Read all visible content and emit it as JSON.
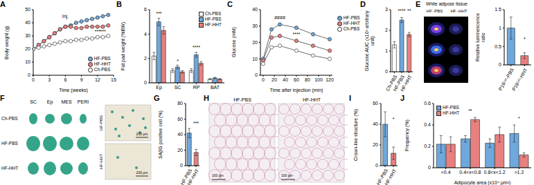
{
  "chart_data": [
    {
      "panel": "A",
      "type": "line",
      "marker": "circle",
      "xlabel": "Time (weeks)",
      "ylabel": "Body weight (g)",
      "x": [
        0,
        1,
        2,
        3,
        4,
        5,
        6,
        7,
        8,
        9,
        10,
        11,
        12,
        13,
        14
      ],
      "xlim": [
        0,
        15
      ],
      "xticks": [
        0,
        3,
        6,
        9,
        12,
        15
      ],
      "ylim": [
        0,
        50
      ],
      "yticks": [
        0,
        10,
        20,
        30,
        40,
        50
      ],
      "legend": "bottom-right",
      "series": [
        {
          "name": "HF-PBS",
          "color": "#6fa8dc",
          "values": [
            20,
            23,
            26,
            29,
            32,
            35,
            37,
            38,
            40,
            41,
            42,
            43,
            44,
            45,
            46
          ]
        },
        {
          "name": "HF-HHT",
          "color": "#e88080",
          "values": [
            20,
            23,
            26,
            29,
            32,
            35,
            37,
            37,
            36,
            36,
            37,
            37,
            37,
            37,
            38
          ]
        },
        {
          "name": "Ch-PBS",
          "color": "#ffffff",
          "values": [
            20,
            21,
            22,
            23,
            24,
            25,
            26,
            26,
            27,
            27,
            28,
            28,
            29,
            29,
            30
          ]
        }
      ],
      "annotations": [
        {
          "text": "Inj.",
          "x": 6,
          "y": 45
        },
        {
          "text": "***",
          "x": 12,
          "y": 33.5
        },
        {
          "text": "***",
          "x": 13,
          "y": 33.5
        }
      ]
    },
    {
      "panel": "B",
      "type": "bar",
      "ylabel": "Fat pad weight (%BW)",
      "categories": [
        "Ep",
        "SC",
        "RP",
        "BAT"
      ],
      "ylim": [
        0,
        6
      ],
      "yticks": [
        0,
        2,
        4,
        6
      ],
      "legend": "top-right",
      "series": [
        {
          "name": "Ch-PBS",
          "color": "#ffffff",
          "values": [
            2.2,
            1.0,
            1.0,
            0.3
          ],
          "errors": [
            0.3,
            0.15,
            0.15,
            0.05
          ]
        },
        {
          "name": "HF-PBS",
          "color": "#6fa8dc",
          "values": [
            5.0,
            1.3,
            2.3,
            0.4
          ],
          "errors": [
            0.3,
            0.15,
            0.2,
            0.05
          ]
        },
        {
          "name": "HF-HHT",
          "color": "#e88080",
          "values": [
            4.3,
            0.9,
            1.6,
            0.3
          ],
          "errors": [
            0.3,
            0.1,
            0.15,
            0.05
          ]
        }
      ],
      "annotations": [
        {
          "text": "***",
          "x": "Ep",
          "y": 5.7
        },
        {
          "text": "*",
          "x": "SC",
          "y": 1.8
        },
        {
          "text": "****",
          "x": "RP",
          "y": 2.9
        }
      ]
    },
    {
      "panel": "C",
      "type": "line",
      "marker": "circle",
      "xlabel": "Time after injection (min)",
      "ylabel": "Glucose (mM)",
      "x": [
        0,
        15,
        30,
        60,
        90,
        120
      ],
      "xlim": [
        -5,
        125
      ],
      "xticks": [
        0,
        20,
        40,
        60,
        80,
        100,
        120
      ],
      "ylim": [
        0,
        40
      ],
      "yticks": [
        0,
        10,
        20,
        30,
        40
      ],
      "legend": "right",
      "series": [
        {
          "name": "HF-PBS",
          "color": "#6fa8dc",
          "values": [
            10,
            28,
            31,
            29,
            25,
            22
          ]
        },
        {
          "name": "HF-HHT",
          "color": "#e88080",
          "values": [
            9,
            23,
            24,
            21,
            18,
            15
          ]
        },
        {
          "name": "Ch-PBS",
          "color": "#ffffff",
          "values": [
            7,
            17,
            18,
            15,
            12,
            10
          ]
        }
      ],
      "annotations": [
        {
          "text": "####",
          "x": 30,
          "y": 35
        },
        {
          "text": "****",
          "x": 60,
          "y": 25
        }
      ]
    },
    {
      "panel": "D",
      "type": "bar",
      "ylabel": "Glucose AUC (x10³ arbitrary unit)",
      "categories": [
        "Ch-PBS",
        "HF-PBS",
        "HF-HHT"
      ],
      "values": [
        1.3,
        2.5,
        1.8
      ],
      "errors": [
        0.15,
        0.12,
        0.1
      ],
      "colors": [
        "#ffffff",
        "#6fa8dc",
        "#e88080"
      ],
      "ylim": [
        0,
        3
      ],
      "yticks": [
        0,
        1,
        2,
        3
      ],
      "annotations": [
        {
          "text": "****",
          "x": "HF-PBS",
          "y": 2.95
        },
        {
          "text": "**",
          "x": "HF-HHT",
          "y": 2.95
        }
      ]
    },
    {
      "panel": "E",
      "type": "bar",
      "ylabel": "Relative luminescence ratio",
      "categories": [
        "P16ᴸᵘᶜ-PBS",
        "P16ᴸᵘᶜ-HHT"
      ],
      "values": [
        1.0,
        0.25
      ],
      "errors": [
        0.3,
        0.08
      ],
      "colors": [
        "#6fa8dc",
        "#e88080"
      ],
      "ylim": [
        0,
        1.5
      ],
      "yticks": [
        0,
        0.5,
        1,
        1.5
      ],
      "annotations": [
        {
          "text": "*",
          "x": "P16ᴸᵘᶜ-HHT",
          "y": 0.7
        }
      ]
    },
    {
      "panel": "G",
      "type": "bar",
      "ylabel": "SAβG positive cell (%)",
      "categories": [
        "HF-PBS",
        "HF-HHT"
      ],
      "values": [
        42,
        17
      ],
      "errors": [
        6,
        4
      ],
      "colors": [
        "#6fa8dc",
        "#e88080"
      ],
      "ylim": [
        0,
        80
      ],
      "yticks": [
        0,
        20,
        40,
        60,
        80
      ],
      "annotations": [
        {
          "text": "***",
          "x": "HF-HHT",
          "y": 55
        }
      ]
    },
    {
      "panel": "I",
      "type": "bar",
      "ylabel": "Crown-like structure (%)",
      "categories": [
        "HF-PBS",
        "HF-HHT"
      ],
      "values": [
        40,
        12
      ],
      "errors": [
        12,
        6
      ],
      "colors": [
        "#6fa8dc",
        "#e88080"
      ],
      "ylim": [
        0,
        60
      ],
      "yticks": [
        0,
        20,
        40,
        60
      ],
      "annotations": [
        {
          "text": "*",
          "x": "HF-HHT",
          "y": 45
        }
      ]
    },
    {
      "panel": "J",
      "type": "bar",
      "xlabel": "Adipocyte area (x10⁴ μm²)",
      "ylabel": "Frequency (%)",
      "categories": [
        "<0.4",
        "0.4<x<0.8",
        "0.8<x<1.2",
        ">1.2"
      ],
      "ylim": [
        0,
        0.6
      ],
      "yticks": [
        0,
        0.2,
        0.4,
        0.6
      ],
      "legend": "top-left",
      "series": [
        {
          "name": "HF-PBS",
          "color": "#6fa8dc",
          "values": [
            0.22,
            0.27,
            0.23,
            0.32
          ],
          "errors": [
            0.08,
            0.03,
            0.04,
            0.08
          ]
        },
        {
          "name": "HF-HHT",
          "color": "#e88080",
          "values": [
            0.22,
            0.45,
            0.31,
            0.12
          ],
          "errors": [
            0.07,
            0.02,
            0.07,
            0.02
          ]
        }
      ],
      "annotations": [
        {
          "text": "**",
          "x": "0.4<x<0.8",
          "y": 0.53
        },
        {
          "text": "*",
          "x": ">1.2",
          "y": 0.46
        }
      ]
    }
  ],
  "image_panels": [
    {
      "title": "White adipose tissue",
      "labels": [
        "HF -PBS",
        "HF -HHT"
      ]
    },
    {
      "panel": "F",
      "columns": [
        "SC",
        "Ep",
        "MES",
        "PERI"
      ],
      "rows": [
        "Ch-PBS",
        "HF-PBS",
        "HF-HHT"
      ],
      "micrographs": [
        "HF-PBS",
        "HF-HHT"
      ],
      "scale_bar": "200 μm"
    },
    {
      "panel": "H",
      "labels": [
        "HF-PBS",
        "HF-HHT"
      ],
      "scale_bar": "100 μm"
    }
  ]
}
